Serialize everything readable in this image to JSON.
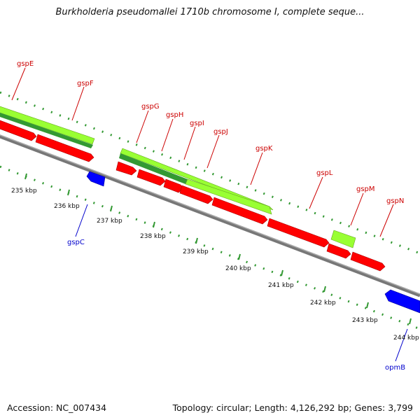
{
  "title": "Burkholderia pseudomallei 1710b chromosome I, complete seque...",
  "footer": {
    "accession": "Accession: NC_007434",
    "summary": "Topology: circular; Length: 4,126,292 bp; Genes: 3,799"
  },
  "kbp_labels": [
    "235 kbp",
    "236 kbp",
    "237 kbp",
    "238 kbp",
    "239 kbp",
    "240 kbp",
    "241 kbp",
    "242 kbp",
    "243 kbp",
    "244 kbp"
  ],
  "genes_forward": [
    "gspE",
    "gspF",
    "gspG",
    "gspH",
    "gspI",
    "gspJ",
    "gspK",
    "gspL",
    "gspM",
    "gspN"
  ],
  "genes_reverse": [
    "gspC",
    "opmB"
  ],
  "colors": {
    "forward_cds": "#ff0000",
    "reverse_cds": "#0000ff",
    "feature_light": "#99ff33",
    "feature_dark": "#339933",
    "backbone": "#888888",
    "tick": "#339933",
    "forward_label": "#cc0000",
    "reverse_label": "#0000cc"
  }
}
